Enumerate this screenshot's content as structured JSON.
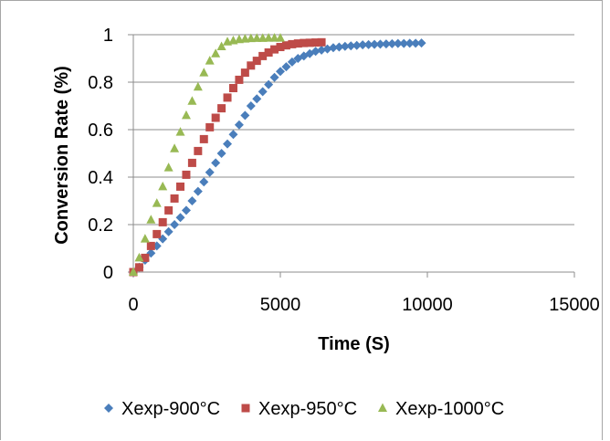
{
  "chart_data": {
    "type": "scatter",
    "title": "",
    "xlabel": "Time (S)",
    "ylabel": "Conversion Rate (%)",
    "xlim": [
      0,
      15000
    ],
    "ylim": [
      0,
      1
    ],
    "x_ticks": [
      "0",
      "5000",
      "10000",
      "15000"
    ],
    "y_ticks": [
      "0",
      "0.2",
      "0.4",
      "0.6",
      "0.8",
      "1"
    ],
    "grid": "horizontal",
    "legend_position": "bottom",
    "series": [
      {
        "name": "Xexp-900°C",
        "color": "#4a7ebb",
        "marker": "diamond",
        "x": [
          0,
          200,
          400,
          600,
          800,
          1000,
          1200,
          1400,
          1600,
          1800,
          2000,
          2200,
          2400,
          2600,
          2800,
          3000,
          3200,
          3400,
          3600,
          3800,
          4000,
          4200,
          4400,
          4600,
          4800,
          5000,
          5200,
          5400,
          5600,
          5800,
          6000,
          6200,
          6400,
          6600,
          6800,
          7000,
          7200,
          7400,
          7600,
          7800,
          8000,
          8200,
          8400,
          8600,
          8800,
          9000,
          9200,
          9400,
          9600,
          9800
        ],
        "y": [
          0,
          0.02,
          0.05,
          0.08,
          0.11,
          0.14,
          0.17,
          0.2,
          0.23,
          0.26,
          0.3,
          0.34,
          0.38,
          0.42,
          0.46,
          0.5,
          0.54,
          0.58,
          0.62,
          0.66,
          0.7,
          0.73,
          0.76,
          0.79,
          0.82,
          0.845,
          0.865,
          0.885,
          0.9,
          0.91,
          0.92,
          0.93,
          0.935,
          0.94,
          0.945,
          0.948,
          0.951,
          0.953,
          0.955,
          0.957,
          0.958,
          0.959,
          0.96,
          0.961,
          0.962,
          0.963,
          0.963,
          0.964,
          0.964,
          0.965
        ]
      },
      {
        "name": "Xexp-950°C",
        "color": "#be4b48",
        "marker": "square",
        "x": [
          0,
          200,
          400,
          600,
          800,
          1000,
          1200,
          1400,
          1600,
          1800,
          2000,
          2200,
          2400,
          2600,
          2800,
          3000,
          3200,
          3400,
          3600,
          3800,
          4000,
          4200,
          4400,
          4600,
          4800,
          5000,
          5200,
          5400,
          5600,
          5800,
          6000,
          6200,
          6400
        ],
        "y": [
          0,
          0.02,
          0.06,
          0.11,
          0.16,
          0.21,
          0.26,
          0.31,
          0.36,
          0.41,
          0.46,
          0.51,
          0.56,
          0.61,
          0.65,
          0.69,
          0.735,
          0.775,
          0.81,
          0.84,
          0.87,
          0.89,
          0.91,
          0.925,
          0.938,
          0.948,
          0.955,
          0.96,
          0.963,
          0.965,
          0.966,
          0.967,
          0.968
        ]
      },
      {
        "name": "Xexp-1000°C",
        "color": "#98b954",
        "marker": "triangle",
        "x": [
          0,
          200,
          400,
          600,
          800,
          1000,
          1200,
          1400,
          1600,
          1800,
          2000,
          2200,
          2400,
          2600,
          2800,
          3000,
          3200,
          3400,
          3600,
          3800,
          4000,
          4200,
          4400,
          4600,
          4800,
          5000
        ],
        "y": [
          0,
          0.06,
          0.14,
          0.22,
          0.29,
          0.36,
          0.44,
          0.52,
          0.59,
          0.66,
          0.72,
          0.78,
          0.84,
          0.89,
          0.92,
          0.95,
          0.97,
          0.975,
          0.98,
          0.982,
          0.984,
          0.985,
          0.985,
          0.986,
          0.986,
          0.986
        ]
      }
    ]
  }
}
